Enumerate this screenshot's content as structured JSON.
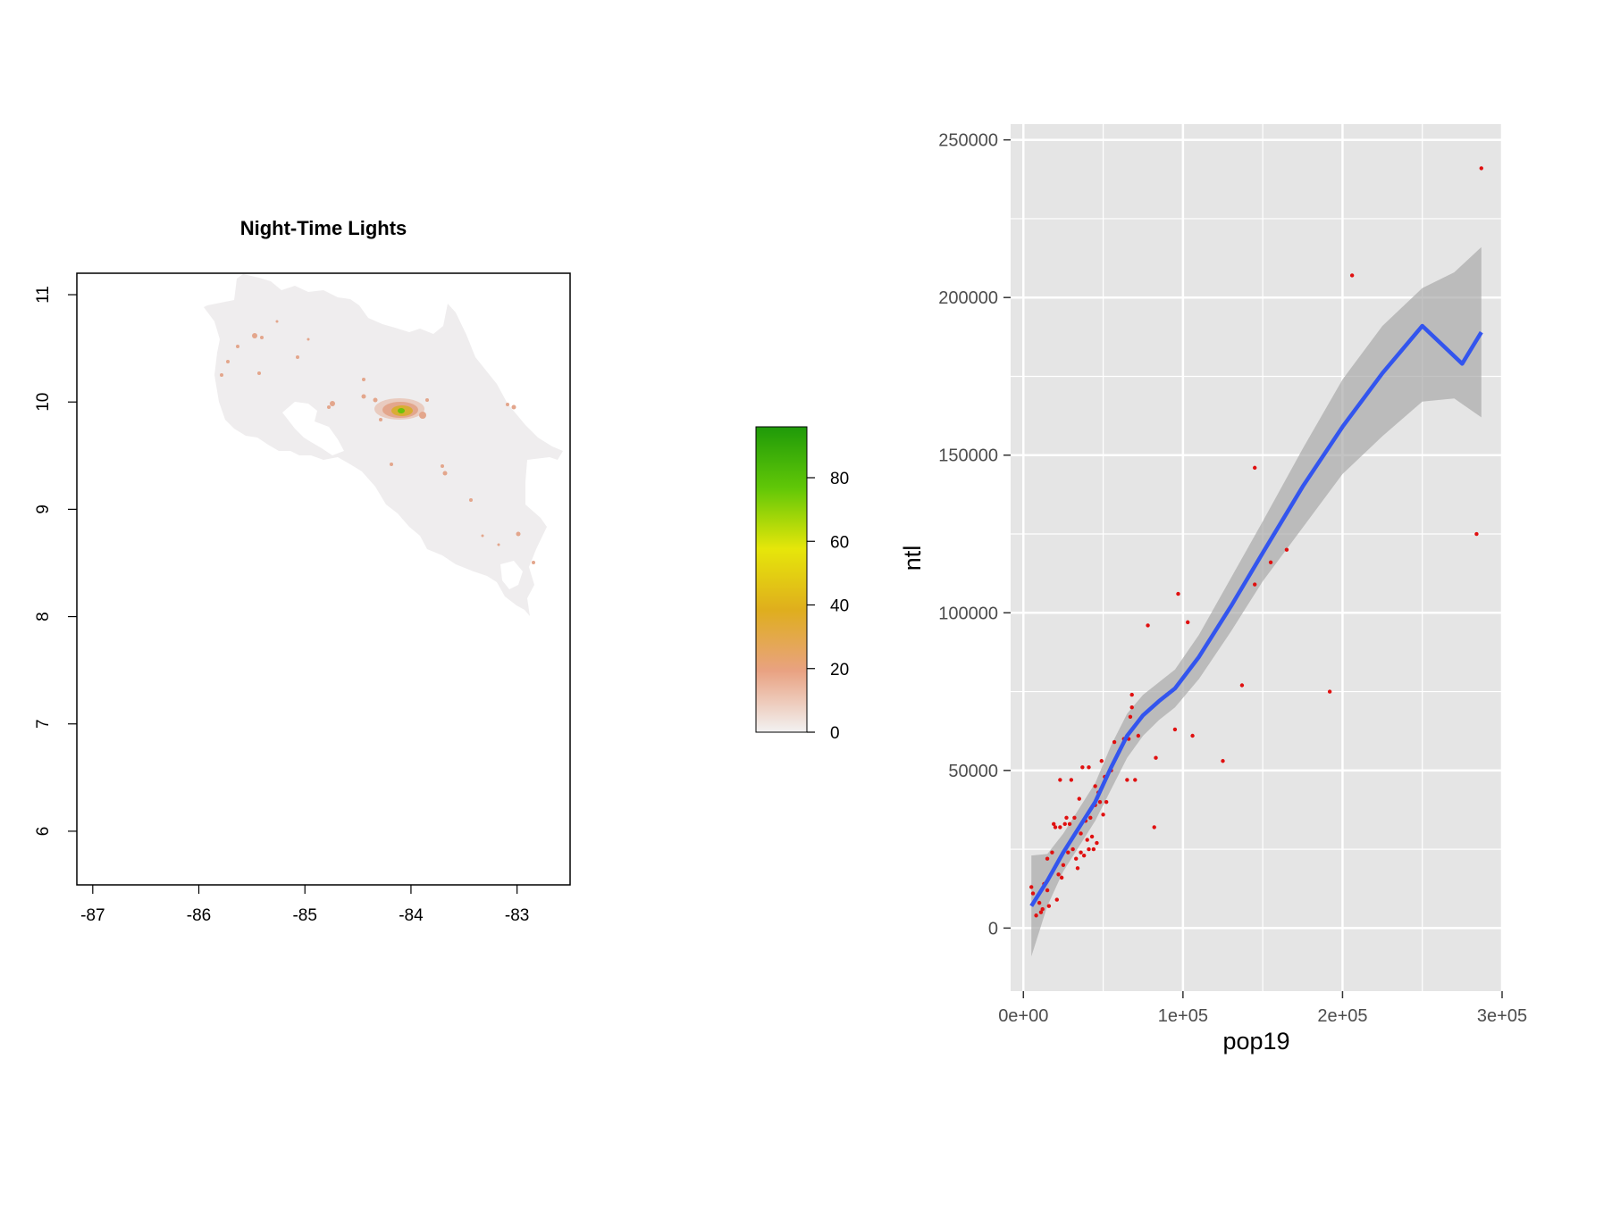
{
  "chart_data": [
    {
      "type": "raster-map",
      "title": "Night-Time Lights",
      "x_ticks": [
        "-87",
        "-86",
        "-85",
        "-84",
        "-83"
      ],
      "y_ticks": [
        "6",
        "7",
        "8",
        "9",
        "10",
        "11"
      ],
      "xlim": [
        -87.15,
        -82.5
      ],
      "ylim": [
        5.5,
        11.2
      ],
      "legend": {
        "ticks": [
          "0",
          "20",
          "40",
          "60",
          "80"
        ],
        "range": [
          0,
          96
        ],
        "colors": [
          "#f2f2f2",
          "#e9a282",
          "#dfae1d",
          "#e6e60a",
          "#61c707",
          "#1f9a09"
        ]
      },
      "colors": {
        "land": "#efedee",
        "light": "#e3a68c",
        "bright": "#d9ad34",
        "peak": "#6ac30a"
      }
    },
    {
      "type": "scatter",
      "xlabel": "pop19",
      "ylabel": "ntl",
      "xlim": [
        -8000,
        300000
      ],
      "ylim": [
        -20000,
        255000
      ],
      "x_ticks": [
        {
          "value": 0,
          "label": "0e+00"
        },
        {
          "value": 100000,
          "label": "1e+05"
        },
        {
          "value": 200000,
          "label": "2e+05"
        },
        {
          "value": 300000,
          "label": "3e+05"
        }
      ],
      "y_ticks": [
        {
          "value": 0,
          "label": "0"
        },
        {
          "value": 50000,
          "label": "50000"
        },
        {
          "value": 100000,
          "label": "100000"
        },
        {
          "value": 150000,
          "label": "150000"
        },
        {
          "value": 200000,
          "label": "200000"
        },
        {
          "value": 250000,
          "label": "250000"
        }
      ],
      "colors": {
        "panel": "#e5e5e5",
        "grid": "#ffffff",
        "points": "#e01010",
        "fit": "#3355ee",
        "band": "#a9a9a9"
      },
      "points": [
        [
          5000,
          13000
        ],
        [
          6000,
          11000
        ],
        [
          8000,
          4000
        ],
        [
          10000,
          8000
        ],
        [
          11000,
          5000
        ],
        [
          12000,
          6000
        ],
        [
          13000,
          14000
        ],
        [
          15000,
          22000
        ],
        [
          15000,
          12000
        ],
        [
          16000,
          7000
        ],
        [
          18000,
          24000
        ],
        [
          19000,
          33000
        ],
        [
          20000,
          32000
        ],
        [
          21000,
          9000
        ],
        [
          22000,
          17000
        ],
        [
          23000,
          47000
        ],
        [
          23000,
          32000
        ],
        [
          24000,
          16000
        ],
        [
          25000,
          20000
        ],
        [
          26000,
          33000
        ],
        [
          27000,
          35000
        ],
        [
          28000,
          24000
        ],
        [
          29000,
          33000
        ],
        [
          30000,
          47000
        ],
        [
          31000,
          25000
        ],
        [
          32000,
          35000
        ],
        [
          33000,
          22000
        ],
        [
          34000,
          19000
        ],
        [
          35000,
          41000
        ],
        [
          36000,
          24000
        ],
        [
          36000,
          30000
        ],
        [
          37000,
          51000
        ],
        [
          38000,
          23000
        ],
        [
          39000,
          34000
        ],
        [
          40000,
          28000
        ],
        [
          41000,
          51000
        ],
        [
          41000,
          25000
        ],
        [
          42000,
          35000
        ],
        [
          43000,
          29000
        ],
        [
          44000,
          25000
        ],
        [
          45000,
          39000
        ],
        [
          45000,
          45000
        ],
        [
          46000,
          27000
        ],
        [
          47000,
          43000
        ],
        [
          48000,
          40000
        ],
        [
          49000,
          53000
        ],
        [
          50000,
          36000
        ],
        [
          51000,
          48000
        ],
        [
          52000,
          40000
        ],
        [
          55000,
          50000
        ],
        [
          57000,
          59000
        ],
        [
          60000,
          56000
        ],
        [
          63000,
          60000
        ],
        [
          65000,
          47000
        ],
        [
          66000,
          60000
        ],
        [
          67000,
          67000
        ],
        [
          68000,
          74000
        ],
        [
          68000,
          70000
        ],
        [
          70000,
          47000
        ],
        [
          72000,
          61000
        ],
        [
          78000,
          96000
        ],
        [
          82000,
          32000
        ],
        [
          83000,
          54000
        ],
        [
          90000,
          74000
        ],
        [
          95000,
          63000
        ],
        [
          97000,
          106000
        ],
        [
          103000,
          97000
        ],
        [
          106000,
          61000
        ],
        [
          125000,
          53000
        ],
        [
          137000,
          77000
        ],
        [
          145000,
          146000
        ],
        [
          145000,
          109000
        ],
        [
          155000,
          116000
        ],
        [
          165000,
          120000
        ],
        [
          192000,
          75000
        ],
        [
          206000,
          207000
        ],
        [
          284000,
          125000
        ],
        [
          287000,
          241000
        ]
      ],
      "fit": [
        [
          5000,
          7000
        ],
        [
          15000,
          15000
        ],
        [
          25000,
          24000
        ],
        [
          35000,
          32000
        ],
        [
          45000,
          40000
        ],
        [
          55000,
          51000
        ],
        [
          65000,
          61000
        ],
        [
          75000,
          67500
        ],
        [
          85000,
          72000
        ],
        [
          95000,
          76000
        ],
        [
          110000,
          86000
        ],
        [
          130000,
          102000
        ],
        [
          150000,
          119000
        ],
        [
          175000,
          140000
        ],
        [
          200000,
          159000
        ],
        [
          225000,
          176000
        ],
        [
          250000,
          191000
        ],
        [
          275000,
          179000
        ],
        [
          287000,
          189000
        ]
      ],
      "band_upper": [
        [
          5000,
          23000
        ],
        [
          15000,
          23500
        ],
        [
          25000,
          30000
        ],
        [
          35000,
          38000
        ],
        [
          45000,
          46000
        ],
        [
          55000,
          58000
        ],
        [
          65000,
          68000
        ],
        [
          75000,
          74000
        ],
        [
          85000,
          78000
        ],
        [
          95000,
          82000
        ],
        [
          110000,
          93000
        ],
        [
          130000,
          111000
        ],
        [
          150000,
          129000
        ],
        [
          175000,
          152000
        ],
        [
          200000,
          174000
        ],
        [
          225000,
          191000
        ],
        [
          250000,
          203000
        ],
        [
          270000,
          208000
        ],
        [
          287000,
          216000
        ]
      ],
      "band_lower": [
        [
          5000,
          -9000
        ],
        [
          15000,
          7000
        ],
        [
          25000,
          18000
        ],
        [
          35000,
          26000
        ],
        [
          45000,
          34000
        ],
        [
          55000,
          44000
        ],
        [
          65000,
          54000
        ],
        [
          75000,
          61000
        ],
        [
          85000,
          66000
        ],
        [
          95000,
          70000
        ],
        [
          110000,
          79000
        ],
        [
          130000,
          94000
        ],
        [
          150000,
          110000
        ],
        [
          175000,
          127000
        ],
        [
          200000,
          144000
        ],
        [
          225000,
          156000
        ],
        [
          250000,
          167000
        ],
        [
          270000,
          168000
        ],
        [
          287000,
          162000
        ]
      ]
    }
  ]
}
